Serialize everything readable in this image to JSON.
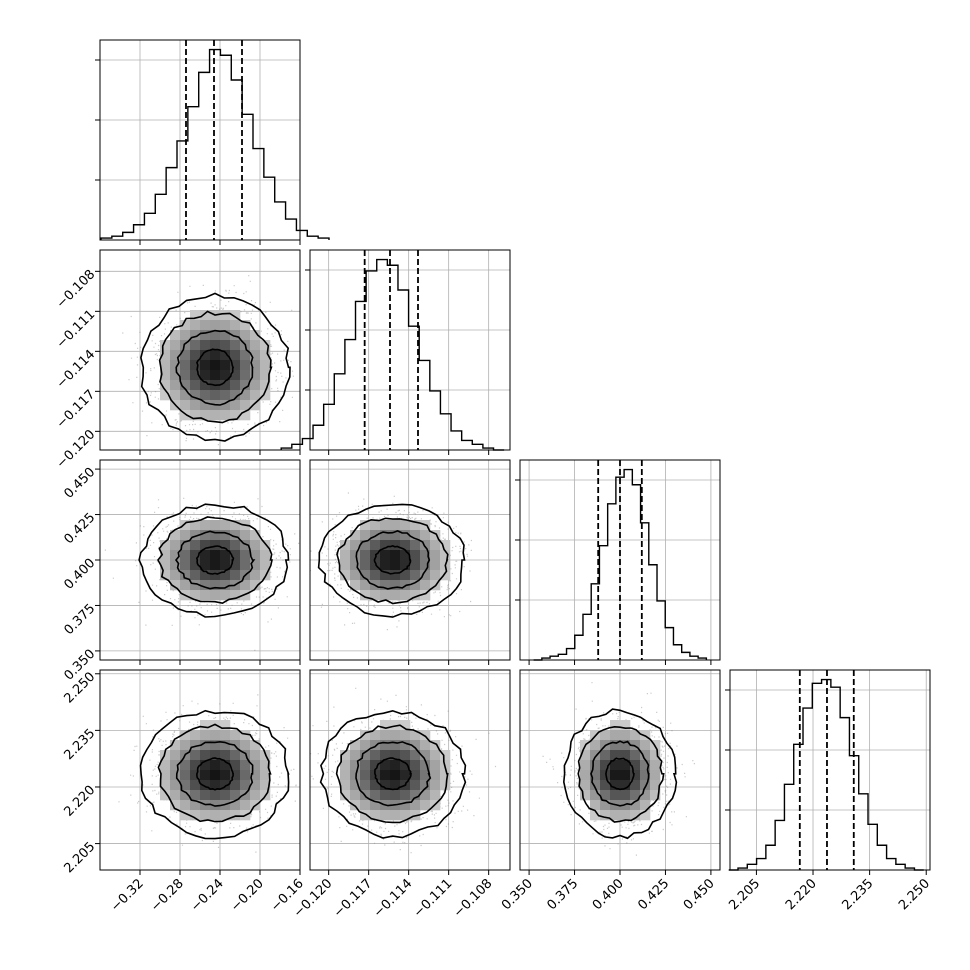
{
  "chart_data": {
    "type": "corner",
    "grid": true,
    "params": [
      {
        "range": [
          -0.36,
          -0.16
        ],
        "ticks": [
          "-0.32",
          "-0.28",
          "-0.24",
          "-0.20",
          "-0.16"
        ],
        "tick_values": [
          -0.32,
          -0.28,
          -0.24,
          -0.2,
          -0.16
        ],
        "mean": -0.245,
        "sd": 0.03,
        "quantiles": [
          -0.274,
          -0.246,
          -0.218
        ],
        "contour_center": [
          -0.245,
          -0.1152
        ],
        "hist": [
          0.01,
          0.02,
          0.04,
          0.08,
          0.14,
          0.24,
          0.38,
          0.52,
          0.7,
          0.88,
          1.0,
          0.97,
          0.84,
          0.66,
          0.48,
          0.33,
          0.2,
          0.11,
          0.05,
          0.02,
          0.01
        ]
      },
      {
        "range": [
          -0.1214,
          -0.1064
        ],
        "ticks": [
          "-0.120",
          "-0.117",
          "-0.114",
          "-0.111",
          "-0.108"
        ],
        "tick_values": [
          -0.12,
          -0.117,
          -0.114,
          -0.111,
          -0.108
        ],
        "mean": -0.1152,
        "sd": 0.0022,
        "quantiles": [
          -0.1173,
          -0.1154,
          -0.1133
        ],
        "contour_center": [
          -0.1152,
          0.4005
        ],
        "hist": [
          0.01,
          0.03,
          0.06,
          0.13,
          0.24,
          0.4,
          0.58,
          0.78,
          0.94,
          1.0,
          0.97,
          0.84,
          0.65,
          0.47,
          0.31,
          0.19,
          0.1,
          0.05,
          0.03,
          0.01,
          0.0
        ]
      },
      {
        "range": [
          0.345,
          0.455
        ],
        "ticks": [
          "0.350",
          "0.375",
          "0.400",
          "0.425",
          "0.450"
        ],
        "tick_values": [
          0.35,
          0.375,
          0.4,
          0.425,
          0.45
        ],
        "mean": 0.4,
        "sd": 0.0125,
        "quantiles": [
          0.388,
          0.4,
          0.412
        ],
        "contour_center": [
          0.4,
          2.224
        ],
        "hist": [
          0.0,
          0.01,
          0.02,
          0.03,
          0.06,
          0.13,
          0.24,
          0.4,
          0.6,
          0.82,
          0.96,
          1.0,
          0.92,
          0.72,
          0.5,
          0.31,
          0.17,
          0.08,
          0.04,
          0.02,
          0.01
        ]
      },
      {
        "range": [
          2.198,
          2.251
        ],
        "ticks": [
          "2.205",
          "2.220",
          "2.235",
          "2.250"
        ],
        "tick_values": [
          2.205,
          2.22,
          2.235,
          2.25
        ],
        "mean": 2.2235,
        "sd": 0.0068,
        "quantiles": [
          2.2165,
          2.2237,
          2.2308
        ],
        "contour_center": [
          2.2235,
          2.2235
        ],
        "hist": [
          0.0,
          0.01,
          0.03,
          0.06,
          0.13,
          0.26,
          0.45,
          0.66,
          0.85,
          0.98,
          1.0,
          0.96,
          0.8,
          0.6,
          0.4,
          0.24,
          0.13,
          0.06,
          0.03,
          0.01,
          0.0
        ]
      }
    ],
    "ylim_diag": [
      0,
      1.05
    ],
    "y_tick_params": [
      1,
      2,
      3
    ],
    "x_tick_params": [
      0,
      1,
      2,
      3
    ]
  }
}
